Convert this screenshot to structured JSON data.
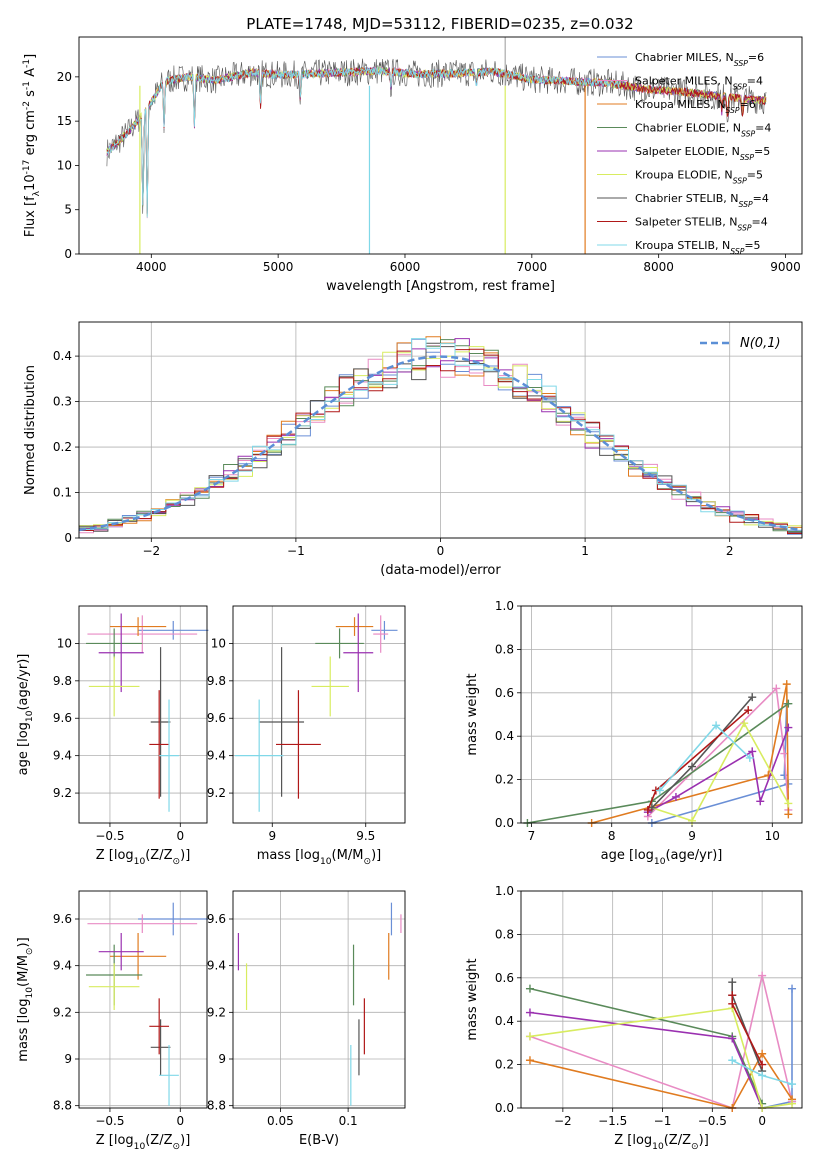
{
  "title": "PLATE=1748, MJD=53112, FIBERID=0235, z=0.032",
  "colors": [
    "#6a8fd6",
    "#e88bc4",
    "#e07b20",
    "#5a8a5a",
    "#9a30b0",
    "#d8ec60",
    "#555555",
    "#b01818",
    "#80d8e8"
  ],
  "chart_data": [
    {
      "id": "spectrum",
      "type": "line",
      "xlabel": "wavelength [Angstrom, rest frame]",
      "ylabel": "Flux [f$_\\lambda$10$^{-17}$ erg cm$^{-2}$ s$^{-1}$ A$^{-1}$]",
      "xlim": [
        3430,
        9130
      ],
      "ylim": [
        0,
        24.5
      ],
      "xticks": [
        4000,
        5000,
        6000,
        7000,
        8000,
        9000
      ],
      "yticks": [
        0,
        5,
        10,
        15,
        20
      ],
      "legend_position": "top-right",
      "legend": [
        {
          "label": "Chabrier MILES, N",
          "sub": "SSP",
          "n": "=6"
        },
        {
          "label": "Salpeter MILES, N",
          "sub": "SSP",
          "n": "=4"
        },
        {
          "label": "Kroupa MILES, N",
          "sub": "SSP",
          "n": "=6"
        },
        {
          "label": "Chabrier ELODIE, N",
          "sub": "SSP",
          "n": "=4"
        },
        {
          "label": "Salpeter ELODIE, N",
          "sub": "SSP",
          "n": "=5"
        },
        {
          "label": "Kroupa ELODIE, N",
          "sub": "SSP",
          "n": "=5"
        },
        {
          "label": "Chabrier STELIB, N",
          "sub": "SSP",
          "n": "=4"
        },
        {
          "label": "Salpeter STELIB, N",
          "sub": "SSP",
          "n": "=4"
        },
        {
          "label": "Kroupa STELIB, N",
          "sub": "SSP",
          "n": "=5"
        }
      ],
      "continuum": {
        "x": [
          3650,
          3800,
          3950,
          4100,
          4300,
          4500,
          4800,
          5000,
          5200,
          5500,
          5800,
          6100,
          6400,
          6700,
          7000,
          7300,
          7600,
          7900,
          8200,
          8500,
          8850
        ],
        "y": [
          11.5,
          13.5,
          16,
          19.5,
          20,
          19.6,
          20.5,
          20.2,
          20.3,
          20.5,
          20.7,
          20.3,
          20.4,
          20.6,
          19.7,
          19.5,
          19.3,
          18.6,
          18.3,
          17.8,
          17.3
        ]
      },
      "dips": [
        [
          3934,
          3.5
        ],
        [
          3968,
          4.5
        ],
        [
          4101,
          14
        ],
        [
          4340,
          14.5
        ],
        [
          4861,
          16.5
        ],
        [
          5175,
          17.5
        ],
        [
          5890,
          18.5
        ],
        [
          6563,
          19
        ],
        [
          8498,
          16
        ],
        [
          8542,
          15
        ],
        [
          8662,
          15.5
        ]
      ],
      "spikes": [
        [
          3910,
          0
        ],
        [
          5720,
          0
        ],
        [
          6790,
          0
        ],
        [
          7420,
          0
        ]
      ]
    },
    {
      "id": "residuals",
      "type": "histogram",
      "xlabel": "(data-model)/error",
      "ylabel": "Normed distribution",
      "xlim": [
        -2.5,
        2.5
      ],
      "ylim": [
        0,
        0.475
      ],
      "xticks": [
        -2,
        -1,
        0,
        1,
        2
      ],
      "yticks": [
        0.0,
        0.1,
        0.2,
        0.3,
        0.4
      ],
      "reference": "$\\mathcal{N}(0,1)$",
      "bin_width": 0.1
    },
    {
      "id": "age-vs-Z",
      "type": "scatter",
      "xlabel": "Z [log$_{10}$(Z/Z$_\\odot$)]",
      "ylabel": "age  [log$_{10}$(age/yr)]",
      "xlim": [
        -0.72,
        0.19
      ],
      "ylim": [
        9.04,
        10.2
      ],
      "xticks": [
        -0.5,
        0.0
      ],
      "yticks": [
        9.2,
        9.4,
        9.6,
        9.8,
        10.0
      ],
      "points": [
        {
          "x": -0.05,
          "y": 10.07,
          "xe": 0.25,
          "ye": 0.05,
          "c": 0
        },
        {
          "x": -0.27,
          "y": 10.05,
          "xe": 0.39,
          "ye": 0.1,
          "c": 1
        },
        {
          "x": -0.3,
          "y": 10.09,
          "xe": 0.2,
          "ye": 0.05,
          "c": 2
        },
        {
          "x": -0.47,
          "y": 10.0,
          "xe": 0.2,
          "ye": 0.08,
          "c": 3
        },
        {
          "x": -0.42,
          "y": 9.95,
          "xe": 0.16,
          "ye": 0.21,
          "c": 4
        },
        {
          "x": -0.47,
          "y": 9.77,
          "xe": 0.18,
          "ye": 0.16,
          "c": 5
        },
        {
          "x": -0.14,
          "y": 9.58,
          "xe": 0.07,
          "ye": 0.4,
          "c": 6
        },
        {
          "x": -0.15,
          "y": 9.46,
          "xe": 0.07,
          "ye": 0.29,
          "c": 7
        },
        {
          "x": -0.08,
          "y": 9.4,
          "xe": 0.07,
          "ye": 0.3,
          "c": 8
        }
      ]
    },
    {
      "id": "age-vs-mass",
      "type": "scatter",
      "xlabel": "mass [log$_{10}$(M/M$_\\odot$)]",
      "ylabel": "",
      "xlim": [
        8.79,
        9.71
      ],
      "ylim": [
        9.04,
        10.2
      ],
      "xticks": [
        9.0,
        9.5
      ],
      "yticks": [
        9.2,
        9.4,
        9.6,
        9.8,
        10.0
      ],
      "points": [
        {
          "x": 9.6,
          "y": 10.07,
          "xe": 0.07,
          "ye": 0.05,
          "c": 0
        },
        {
          "x": 9.58,
          "y": 10.05,
          "xe": 0.04,
          "ye": 0.1,
          "c": 1
        },
        {
          "x": 9.44,
          "y": 10.09,
          "xe": 0.1,
          "ye": 0.05,
          "c": 2
        },
        {
          "x": 9.36,
          "y": 10.0,
          "xe": 0.13,
          "ye": 0.08,
          "c": 3
        },
        {
          "x": 9.46,
          "y": 9.95,
          "xe": 0.08,
          "ye": 0.21,
          "c": 4
        },
        {
          "x": 9.31,
          "y": 9.77,
          "xe": 0.1,
          "ye": 0.16,
          "c": 5
        },
        {
          "x": 9.05,
          "y": 9.58,
          "xe": 0.12,
          "ye": 0.4,
          "c": 6
        },
        {
          "x": 9.14,
          "y": 9.46,
          "xe": 0.12,
          "ye": 0.29,
          "c": 7
        },
        {
          "x": 8.93,
          "y": 9.4,
          "xe": 0.13,
          "ye": 0.3,
          "c": 8
        }
      ]
    },
    {
      "id": "weight-vs-age",
      "type": "line",
      "xlabel": "age  [log$_{10}$(age/yr)]",
      "ylabel": "mass weight",
      "xlim": [
        6.87,
        10.37
      ],
      "ylim": [
        0,
        1.0
      ],
      "xticks": [
        7,
        8,
        9,
        10
      ],
      "yticks": [
        0.0,
        0.2,
        0.4,
        0.6,
        0.8,
        1.0
      ],
      "series": [
        {
          "c": 0,
          "x": [
            8.5,
            10.2,
            10.15,
            10.18
          ],
          "y": [
            0.0,
            0.18,
            0.22,
            0.55
          ]
        },
        {
          "c": 1,
          "x": [
            8.45,
            10.05,
            10.15,
            10.2
          ],
          "y": [
            0.03,
            0.62,
            0.32,
            0.06
          ]
        },
        {
          "c": 2,
          "x": [
            7.75,
            9.95,
            10.18,
            10.2
          ],
          "y": [
            0.0,
            0.22,
            0.64,
            0.04
          ]
        },
        {
          "c": 3,
          "x": [
            6.95,
            8.5,
            10.2
          ],
          "y": [
            0.0,
            0.1,
            0.55
          ]
        },
        {
          "c": 4,
          "x": [
            8.45,
            8.8,
            9.75,
            9.85,
            10.2
          ],
          "y": [
            0.05,
            0.12,
            0.33,
            0.1,
            0.44
          ]
        },
        {
          "c": 5,
          "x": [
            8.5,
            9.0,
            9.65,
            10.2
          ],
          "y": [
            0.07,
            0.01,
            0.46,
            0.09
          ]
        },
        {
          "c": 6,
          "x": [
            8.5,
            9.0,
            9.75
          ],
          "y": [
            0.07,
            0.26,
            0.58
          ]
        },
        {
          "c": 7,
          "x": [
            8.45,
            8.55,
            9.7
          ],
          "y": [
            0.06,
            0.15,
            0.52
          ]
        },
        {
          "c": 8,
          "x": [
            8.6,
            9.3,
            9.72
          ],
          "y": [
            0.15,
            0.45,
            0.3
          ]
        }
      ]
    },
    {
      "id": "mass-vs-Z",
      "type": "scatter",
      "xlabel": "Z [log$_{10}$(Z/Z$_\\odot$)]",
      "ylabel": "mass [log$_{10}$(M/M$_\\odot$)]",
      "xlim": [
        -0.72,
        0.19
      ],
      "ylim": [
        8.79,
        9.72
      ],
      "xticks": [
        -0.5,
        0.0
      ],
      "yticks": [
        8.8,
        9.0,
        9.2,
        9.4,
        9.6
      ],
      "points": [
        {
          "x": -0.05,
          "y": 9.6,
          "xe": 0.25,
          "ye": 0.07,
          "c": 0
        },
        {
          "x": -0.27,
          "y": 9.58,
          "xe": 0.39,
          "ye": 0.04,
          "c": 1
        },
        {
          "x": -0.3,
          "y": 9.44,
          "xe": 0.2,
          "ye": 0.1,
          "c": 2
        },
        {
          "x": -0.47,
          "y": 9.36,
          "xe": 0.2,
          "ye": 0.13,
          "c": 3
        },
        {
          "x": -0.42,
          "y": 9.46,
          "xe": 0.16,
          "ye": 0.08,
          "c": 4
        },
        {
          "x": -0.47,
          "y": 9.31,
          "xe": 0.18,
          "ye": 0.1,
          "c": 5
        },
        {
          "x": -0.14,
          "y": 9.05,
          "xe": 0.07,
          "ye": 0.12,
          "c": 6
        },
        {
          "x": -0.15,
          "y": 9.14,
          "xe": 0.07,
          "ye": 0.12,
          "c": 7
        },
        {
          "x": -0.08,
          "y": 8.93,
          "xe": 0.07,
          "ye": 0.13,
          "c": 8
        }
      ]
    },
    {
      "id": "mass-vs-ebv",
      "type": "scatter",
      "xlabel": "E(B-V)",
      "ylabel": "",
      "xlim": [
        0.015,
        0.142
      ],
      "ylim": [
        8.79,
        9.72
      ],
      "xticks": [
        0.05,
        0.1
      ],
      "yticks": [
        8.8,
        9.0,
        9.2,
        9.4,
        9.6
      ],
      "points": [
        {
          "x": 0.132,
          "y": 9.6,
          "xe": 0.0,
          "ye": 0.07,
          "c": 0
        },
        {
          "x": 0.139,
          "y": 9.58,
          "xe": 0.0,
          "ye": 0.04,
          "c": 1
        },
        {
          "x": 0.13,
          "y": 9.44,
          "xe": 0.0,
          "ye": 0.1,
          "c": 2
        },
        {
          "x": 0.104,
          "y": 9.36,
          "xe": 0.0,
          "ye": 0.13,
          "c": 3
        },
        {
          "x": 0.019,
          "y": 9.46,
          "xe": 0.0,
          "ye": 0.08,
          "c": 4
        },
        {
          "x": 0.025,
          "y": 9.31,
          "xe": 0.0,
          "ye": 0.1,
          "c": 5
        },
        {
          "x": 0.108,
          "y": 9.05,
          "xe": 0.0,
          "ye": 0.12,
          "c": 6
        },
        {
          "x": 0.112,
          "y": 9.14,
          "xe": 0.0,
          "ye": 0.12,
          "c": 7
        },
        {
          "x": 0.102,
          "y": 8.93,
          "xe": 0.0,
          "ye": 0.13,
          "c": 8
        }
      ]
    },
    {
      "id": "weight-vs-Z",
      "type": "line",
      "xlabel": "Z [log$_{10}$(Z/Z$_\\odot$)]",
      "ylabel": "mass weight",
      "xlim": [
        -2.42,
        0.4
      ],
      "ylim": [
        0,
        1.0
      ],
      "xticks": [
        -2.0,
        -1.5,
        -1.0,
        -0.5,
        0.0
      ],
      "yticks": [
        0.0,
        0.2,
        0.4,
        0.6,
        0.8,
        1.0
      ],
      "series": [
        {
          "c": 0,
          "x": [
            0.0,
            0.3,
            0.3
          ],
          "y": [
            0.0,
            0.03,
            0.55
          ]
        },
        {
          "c": 1,
          "x": [
            -2.33,
            -0.3,
            0.0,
            0.3
          ],
          "y": [
            0.33,
            0.0,
            0.61,
            0.03
          ]
        },
        {
          "c": 2,
          "x": [
            -2.33,
            -0.3,
            0.0,
            0.3
          ],
          "y": [
            0.22,
            0.0,
            0.25,
            0.04
          ]
        },
        {
          "c": 3,
          "x": [
            -2.33,
            -0.3,
            0.0
          ],
          "y": [
            0.55,
            0.33,
            0.02
          ]
        },
        {
          "c": 4,
          "x": [
            -2.33,
            -0.3,
            0.0
          ],
          "y": [
            0.44,
            0.32,
            0.0
          ]
        },
        {
          "c": 5,
          "x": [
            -2.33,
            -0.3,
            0.0,
            0.3
          ],
          "y": [
            0.33,
            0.46,
            0.0,
            0.02
          ]
        },
        {
          "c": 6,
          "x": [
            -0.3,
            -0.3,
            0.0
          ],
          "y": [
            0.58,
            0.52,
            0.17
          ]
        },
        {
          "c": 7,
          "x": [
            -0.3,
            -0.3,
            0.0
          ],
          "y": [
            0.52,
            0.48,
            0.2
          ]
        },
        {
          "c": 8,
          "x": [
            -0.3,
            0.0,
            0.3
          ],
          "y": [
            0.22,
            0.15,
            0.11
          ]
        }
      ]
    }
  ]
}
